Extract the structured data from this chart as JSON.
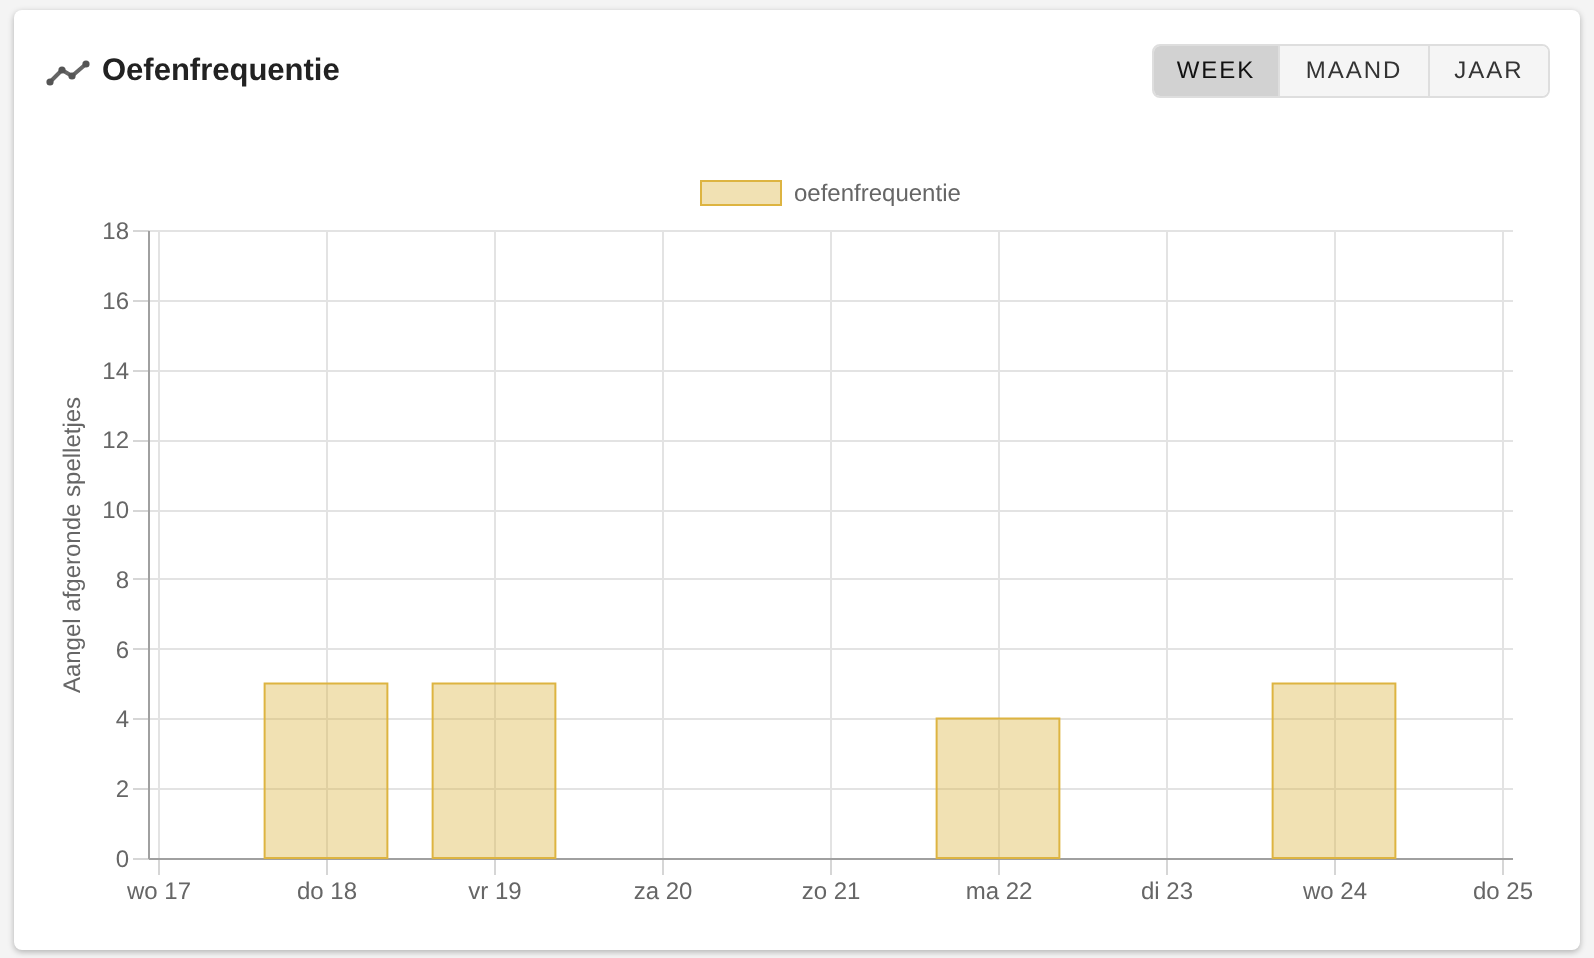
{
  "chart_data": {
    "type": "bar",
    "title": "Oefenfrequentie",
    "ylabel": "Aangel afgeronde spelletjes",
    "categories": [
      "wo 17",
      "do 18",
      "vr 19",
      "za 20",
      "zo 21",
      "ma 22",
      "di 23",
      "wo 24",
      "do 25"
    ],
    "series": [
      {
        "name": "oefenfrequentie",
        "color": "#ddb441",
        "values": [
          0,
          5,
          5,
          0,
          0,
          4,
          0,
          5,
          0
        ]
      }
    ],
    "ylim": [
      0,
      18
    ],
    "yticks": [
      0,
      2,
      4,
      6,
      8,
      10,
      12,
      14,
      16,
      18
    ],
    "grid": true,
    "legend": "top",
    "annotations": [
      "WEEK",
      "MAAND",
      "JAAR"
    ]
  }
}
